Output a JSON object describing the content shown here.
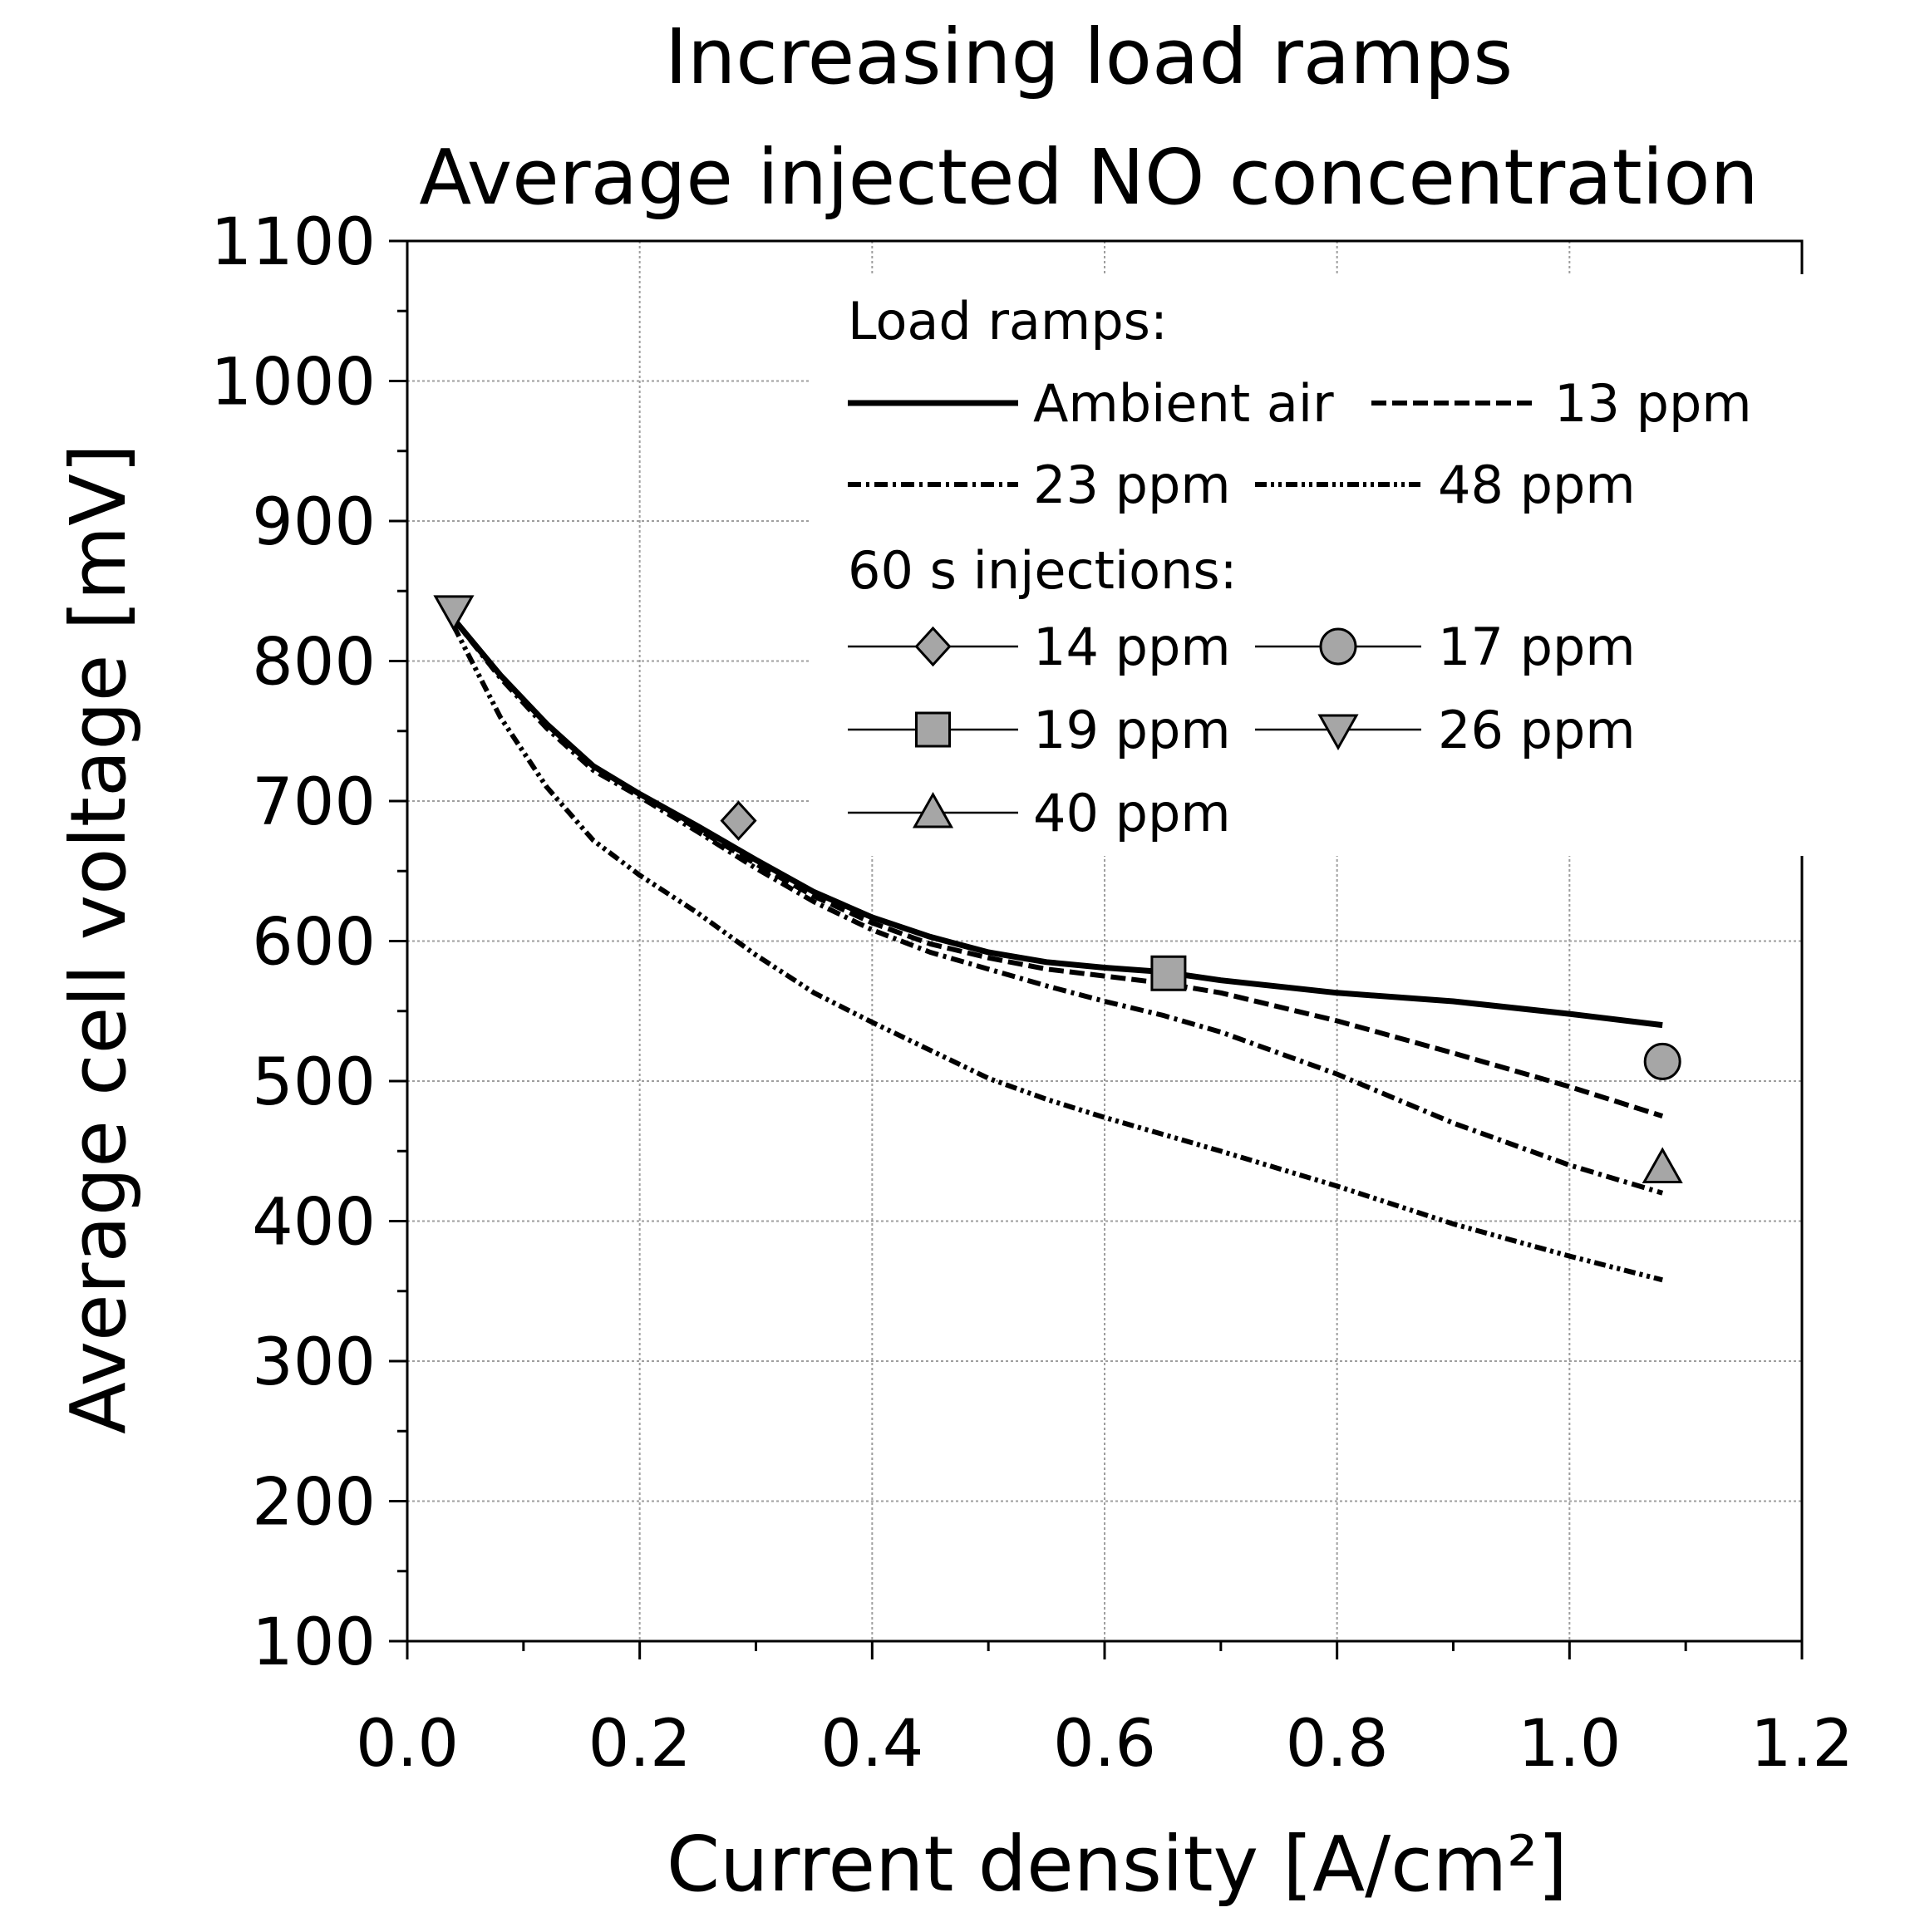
{
  "chart_data": {
    "type": "line",
    "title_lines": [
      "Increasing load ramps",
      "Average injected NO concentration"
    ],
    "xlabel": "Current density [A/cm²]",
    "ylabel": "Average cell voltage [mV]",
    "xlim": [
      0.0,
      1.2
    ],
    "ylim": [
      100,
      1100
    ],
    "x_ticks": [
      "0.0",
      "0.2",
      "0.4",
      "0.6",
      "0.8",
      "1.0",
      "1.2"
    ],
    "y_ticks": [
      "100",
      "200",
      "300",
      "400",
      "500",
      "600",
      "700",
      "800",
      "900",
      "1000",
      "1100"
    ],
    "grid": true,
    "legend": {
      "position": "top-right",
      "ramps_heading": "Load ramps:",
      "injections_heading": "60 s injections:"
    },
    "series": [
      {
        "name": "Ambient air",
        "style": "solid",
        "x": [
          0.04,
          0.08,
          0.12,
          0.16,
          0.2,
          0.25,
          0.3,
          0.35,
          0.4,
          0.45,
          0.5,
          0.55,
          0.6,
          0.65,
          0.7,
          0.8,
          0.9,
          1.0,
          1.08
        ],
        "y": [
          830,
          790,
          755,
          725,
          705,
          682,
          658,
          635,
          617,
          603,
          592,
          585,
          581,
          578,
          572,
          563,
          557,
          548,
          540
        ]
      },
      {
        "name": "13 ppm",
        "style": "dashed",
        "x": [
          0.04,
          0.08,
          0.12,
          0.16,
          0.2,
          0.25,
          0.3,
          0.35,
          0.4,
          0.45,
          0.5,
          0.55,
          0.6,
          0.65,
          0.7,
          0.8,
          0.9,
          1.0,
          1.08
        ],
        "y": [
          830,
          790,
          755,
          725,
          705,
          680,
          655,
          632,
          613,
          598,
          588,
          580,
          575,
          570,
          563,
          543,
          520,
          496,
          475
        ]
      },
      {
        "name": "23 ppm",
        "style": "dash-dot",
        "x": [
          0.04,
          0.08,
          0.12,
          0.16,
          0.2,
          0.25,
          0.3,
          0.35,
          0.4,
          0.45,
          0.5,
          0.55,
          0.6,
          0.65,
          0.7,
          0.8,
          0.9,
          1.0,
          1.08
        ],
        "y": [
          830,
          788,
          752,
          722,
          703,
          678,
          652,
          628,
          608,
          592,
          580,
          568,
          557,
          547,
          535,
          505,
          470,
          440,
          420
        ]
      },
      {
        "name": "48 ppm",
        "style": "dash-dot-dot",
        "x": [
          0.04,
          0.08,
          0.12,
          0.16,
          0.2,
          0.25,
          0.3,
          0.35,
          0.4,
          0.45,
          0.5,
          0.55,
          0.6,
          0.65,
          0.7,
          0.8,
          0.9,
          1.0,
          1.08
        ],
        "y": [
          825,
          760,
          710,
          672,
          647,
          620,
          590,
          563,
          542,
          522,
          502,
          487,
          474,
          462,
          450,
          425,
          398,
          375,
          358
        ]
      }
    ],
    "injections": [
      {
        "name": "14 ppm",
        "marker": "diamond",
        "x": 0.285,
        "y": 686
      },
      {
        "name": "17 ppm",
        "marker": "circle",
        "x": 1.08,
        "y": 514
      },
      {
        "name": "19 ppm",
        "marker": "square",
        "x": 0.655,
        "y": 577
      },
      {
        "name": "26 ppm",
        "marker": "triangle-down",
        "x": 0.04,
        "y": 836
      },
      {
        "name": "40 ppm",
        "marker": "triangle-up",
        "x": 1.08,
        "y": 438
      }
    ],
    "colors": {
      "line": "#000000",
      "marker_fill": "#a6a6a6",
      "grid": "#9e9e9e"
    }
  }
}
